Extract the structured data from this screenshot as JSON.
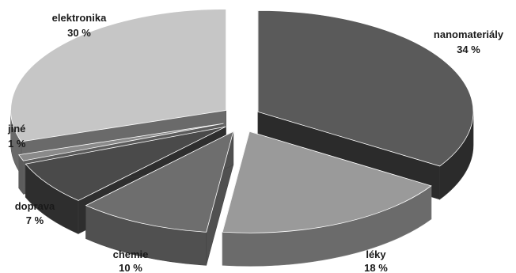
{
  "chart_data": {
    "type": "pie",
    "title": "",
    "slices": [
      {
        "label": "nanomateriály",
        "value": 34,
        "value_text": "34 %",
        "color": "#5a5a5a",
        "side_color": "#2b2b2b",
        "edge_color": "#343434"
      },
      {
        "label": "léky",
        "value": 18,
        "value_text": "18 %",
        "color": "#9a9a9a",
        "side_color": "#6b6b6b",
        "edge_color": "#777777"
      },
      {
        "label": "chemie",
        "value": 10,
        "value_text": "10 %",
        "color": "#6e6e6e",
        "side_color": "#505050",
        "edge_color": "#444444"
      },
      {
        "label": "doprava",
        "value": 7,
        "value_text": "7 %",
        "color": "#4a4a4a",
        "side_color": "#2e2e2e",
        "edge_color": "#3a3a3a"
      },
      {
        "label": "jiné",
        "value": 1,
        "value_text": "1 %",
        "color": "#8a8a8a",
        "side_color": "#5c5c5c",
        "edge_color": "#606060"
      },
      {
        "label": "elektronika",
        "value": 30,
        "value_text": "30 %",
        "color": "#c6c6c6",
        "side_color": "#6a6a6a",
        "edge_color": "#585858"
      }
    ],
    "exploded": true,
    "three_d": true,
    "legend": "none",
    "grid": false
  }
}
